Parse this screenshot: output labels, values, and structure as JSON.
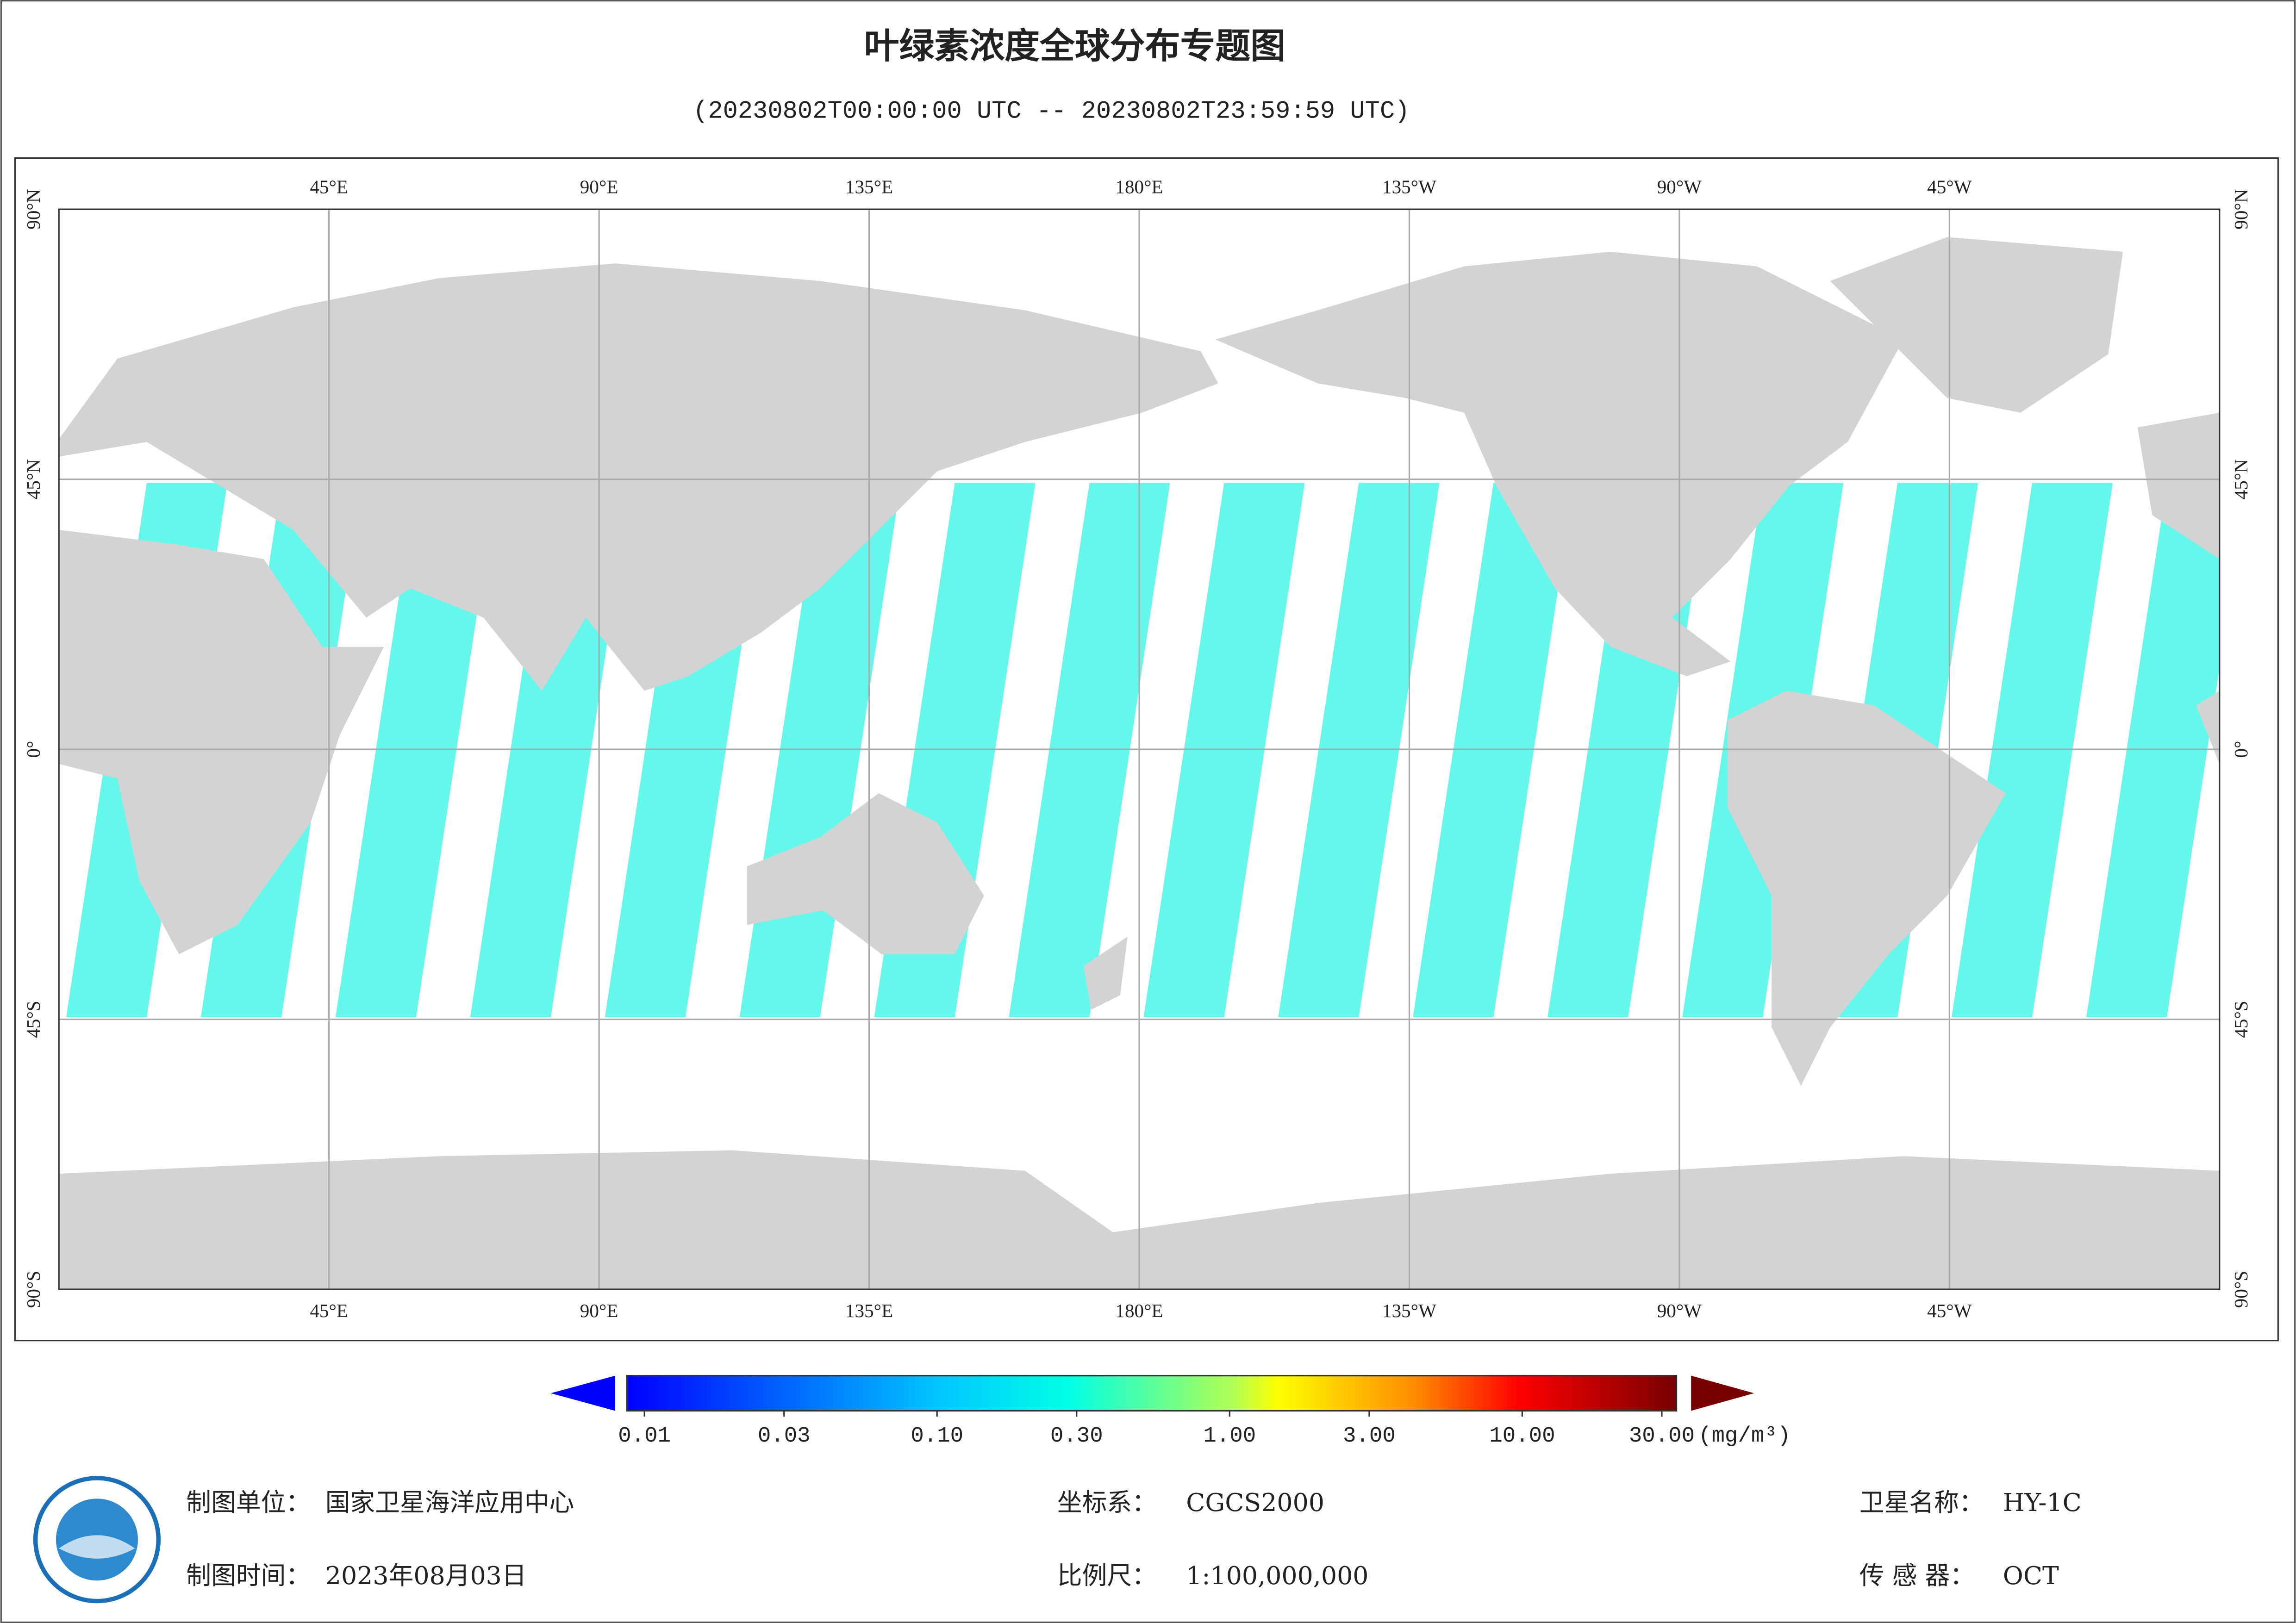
{
  "header": {
    "title": "叶绿素浓度全球分布专题图",
    "subtitle": "(20230802T00:00:00 UTC -- 20230802T23:59:59 UTC)"
  },
  "map": {
    "lon_labels": [
      {
        "value": 45,
        "label": "45°E"
      },
      {
        "value": 90,
        "label": "90°E"
      },
      {
        "value": 135,
        "label": "135°E"
      },
      {
        "value": 180,
        "label": "180°E"
      },
      {
        "value": -135,
        "label": "135°W"
      },
      {
        "value": -90,
        "label": "90°W"
      },
      {
        "value": -45,
        "label": "45°W"
      }
    ],
    "lat_labels": [
      {
        "value": 90,
        "label": "90°N"
      },
      {
        "value": 45,
        "label": "45°N"
      },
      {
        "value": 0,
        "label": "0°"
      },
      {
        "value": -45,
        "label": "45°S"
      },
      {
        "value": -90,
        "label": "90°S"
      }
    ],
    "grid": true
  },
  "colorbar": {
    "range": [
      0.01,
      30
    ],
    "scale": "log",
    "ticks": [
      {
        "value": 0.01,
        "label": "0.01"
      },
      {
        "value": 0.03,
        "label": "0.03"
      },
      {
        "value": 0.1,
        "label": "0.10"
      },
      {
        "value": 0.3,
        "label": "0.30"
      },
      {
        "value": 1,
        "label": "1.00"
      },
      {
        "value": 3,
        "label": "3.00"
      },
      {
        "value": 10,
        "label": "10.00"
      },
      {
        "value": 30,
        "label": "30.00"
      }
    ],
    "unit": "(mg/m³)"
  },
  "footer": {
    "org_label": "制图单位：",
    "org": "国家卫星海洋应用中心",
    "date_label": "制图时间：",
    "date": "2023年08月03日",
    "crs_label": "坐标系：",
    "crs": "CGCS2000",
    "scale_label": "比例尺：",
    "scale": "1:100,000,000",
    "satellite_label": "卫星名称：",
    "satellite": "HY-1C",
    "sensor_label": "传 感 器：",
    "sensor": "OCT"
  }
}
